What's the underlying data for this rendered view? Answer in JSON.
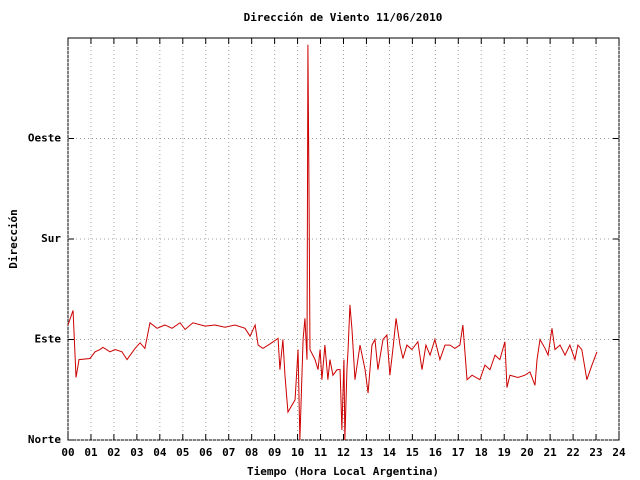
{
  "chart_data": {
    "type": "line",
    "title": "Dirección de Viento 11/06/2010",
    "x_label": "Tiempo (Hora Local Argentina)",
    "y_label": "Dirección",
    "xlim": [
      0,
      24
    ],
    "xticks": [
      {
        "value": 0,
        "label": "00"
      },
      {
        "value": 1,
        "label": "01"
      },
      {
        "value": 2,
        "label": "02"
      },
      {
        "value": 3,
        "label": "03"
      },
      {
        "value": 4,
        "label": "04"
      },
      {
        "value": 5,
        "label": "05"
      },
      {
        "value": 6,
        "label": "06"
      },
      {
        "value": 7,
        "label": "07"
      },
      {
        "value": 8,
        "label": "08"
      },
      {
        "value": 9,
        "label": "09"
      },
      10,
      11,
      12,
      13,
      14,
      15,
      16,
      17,
      18,
      19,
      20,
      21,
      22,
      23,
      24
    ],
    "ylim": [
      0,
      360
    ],
    "yticks": [
      {
        "value": 0,
        "label": "Norte"
      },
      {
        "value": 90,
        "label": "Este"
      },
      {
        "value": 180,
        "label": "Sur"
      },
      {
        "value": 270,
        "label": "Oeste"
      }
    ],
    "grid": true,
    "series": [
      {
        "color": "#cc0000",
        "x": [
          0,
          0.22,
          0.35,
          0.48,
          0.96,
          1.18,
          1.39,
          1.52,
          1.83,
          2.05,
          2.35,
          2.57,
          2.92,
          3.14,
          3.35,
          3.57,
          3.88,
          4.22,
          4.53,
          4.88,
          5.1,
          5.44,
          5.97,
          6.4,
          6.84,
          7.27,
          7.71,
          7.93,
          8.15,
          8.28,
          8.49,
          8.8,
          9.15,
          9.23,
          9.36,
          9.45,
          9.58,
          9.89,
          10.02,
          10.1,
          10.24,
          10.32,
          10.41,
          10.45,
          10.5,
          10.54,
          10.76,
          10.89,
          10.98,
          11.06,
          11.19,
          11.32,
          11.41,
          11.54,
          11.72,
          11.85,
          11.93,
          12.02,
          12.06,
          12.15,
          12.2,
          12.28,
          12.37,
          12.5,
          12.72,
          12.94,
          13.07,
          13.24,
          13.37,
          13.5,
          13.72,
          13.89,
          14.02,
          14.15,
          14.29,
          14.46,
          14.59,
          14.76,
          14.98,
          15.24,
          15.42,
          15.59,
          15.77,
          15.98,
          16.2,
          16.42,
          16.64,
          16.85,
          17.07,
          17.2,
          17.38,
          17.6,
          17.94,
          18.16,
          18.38,
          18.6,
          18.81,
          19.03,
          19.12,
          19.25,
          19.6,
          19.9,
          20.12,
          20.34,
          20.43,
          20.56,
          20.78,
          20.91,
          21.08,
          21.21,
          21.43,
          21.65,
          21.86,
          22.08,
          22.21,
          22.38,
          22.6,
          22.82,
          23.04
        ],
        "values": [
          103,
          116,
          56,
          72,
          73,
          79,
          81,
          83,
          79,
          81,
          79,
          72,
          82,
          87,
          82,
          105,
          100,
          103,
          100,
          105,
          99,
          105,
          102,
          103,
          101,
          103,
          100,
          93,
          103,
          85,
          82,
          86,
          91,
          63,
          90,
          58,
          25,
          36,
          81,
          0,
          90,
          109,
          72,
          354,
          215,
          81,
          72,
          63,
          81,
          54,
          85,
          54,
          72,
          58,
          63,
          63,
          9,
          72,
          0,
          63,
          81,
          121,
          99,
          54,
          85,
          63,
          42,
          85,
          90,
          63,
          90,
          94,
          58,
          81,
          109,
          85,
          73,
          85,
          81,
          88,
          63,
          85,
          76,
          90,
          72,
          85,
          85,
          82,
          85,
          103,
          54,
          58,
          54,
          67,
          63,
          76,
          72,
          88,
          47,
          58,
          56,
          58,
          61,
          49,
          72,
          90,
          82,
          76,
          100,
          81,
          85,
          76,
          85,
          72,
          85,
          81,
          54,
          67,
          79
        ]
      }
    ]
  }
}
